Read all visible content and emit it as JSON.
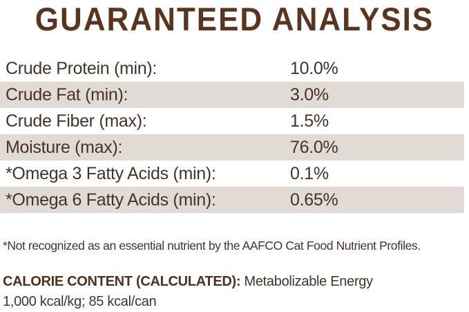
{
  "title": "GUARANTEED ANALYSIS",
  "table": {
    "rows": [
      {
        "label": "Crude Protein (min):",
        "value": "10.0%"
      },
      {
        "label": "Crude Fat (min):",
        "value": "3.0%"
      },
      {
        "label": "Crude Fiber (max):",
        "value": "1.5%"
      },
      {
        "label": "Moisture (max):",
        "value": "76.0%"
      },
      {
        "label": "*Omega 3 Fatty Acids (min):",
        "value": "0.1%"
      },
      {
        "label": "*Omega 6 Fatty Acids (min):",
        "value": "0.65%"
      }
    ]
  },
  "footnote": "*Not recognized as an essential nutrient by the AAFCO Cat Food Nutrient Profiles.",
  "calorie": {
    "label": "CALORIE CONTENT (CALCULATED):",
    "description": " Metabolizable Energy",
    "values": "1,000 kcal/kg; 85 kcal/can"
  },
  "colors": {
    "title_brown": "#5a341f",
    "body_text": "#453329",
    "row_shade": "#e2dbd5",
    "background": "#ffffff"
  }
}
